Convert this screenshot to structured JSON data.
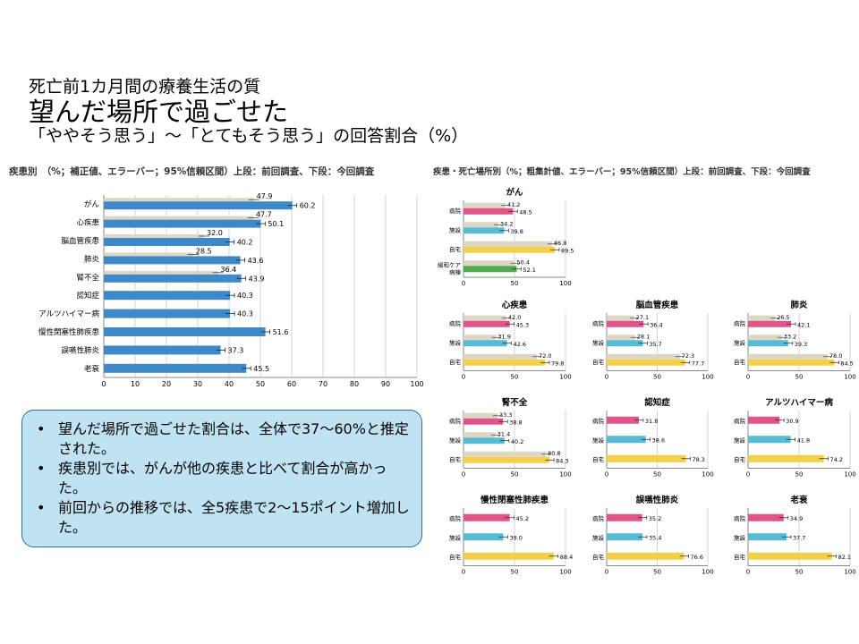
{
  "title": {
    "line1": "死亡前1カ月間の療養生活の質",
    "line2": "望んだ場所で過ごせた",
    "line3": "「ややそう思う」～「とてもそう思う」の回答割合（%）"
  },
  "left_subtitle": "疾患別　（%；補正値、エラーバー；95%信頼区間）上段：前回調査、下段：今回調査",
  "right_subtitle": "疾患・死亡場所別（%；粗集計値、エラーバー；95%信頼区間）上段：前回調査、下段：今回調査",
  "summary": {
    "bullet": "•",
    "items": [
      "望んだ場所で過ごせた割合は、全体で37～60%と推定された。",
      "疾患別では、がんが他の疾患と比べて割合が高かった。",
      "前回からの推移では、全5疾患で2～15ポイント増加した。"
    ]
  },
  "colors": {
    "previous": "#ddd6c5",
    "current_left": "#3f89c8",
    "hospital": "#e0548a",
    "facility": "#57bcd3",
    "home": "#f3d04a",
    "palliative": "#53a852",
    "grid": "#c8c8c8",
    "box_fill": "#bfe3f3",
    "box_border": "#2e6f9e"
  },
  "chart_data": [
    {
      "id": "by-disease",
      "type": "bar",
      "orientation": "horizontal",
      "xlim": [
        0,
        100
      ],
      "xticks": [
        0,
        10,
        20,
        30,
        40,
        50,
        60,
        70,
        80,
        90,
        100
      ],
      "grid": true,
      "categories": [
        "がん",
        "心疾患",
        "脳血管疾患",
        "肺炎",
        "腎不全",
        "認知症",
        "アルツハイマー病",
        "慢性閉塞性肺疾患",
        "誤嚥性肺炎",
        "老衰"
      ],
      "series": [
        {
          "values": [
            47.9,
            47.7,
            32.0,
            28.5,
            36.4,
            null,
            null,
            null,
            null,
            null
          ]
        },
        {
          "values": [
            60.2,
            50.1,
            40.2,
            43.6,
            43.9,
            40.3,
            40.3,
            51.6,
            37.3,
            45.5
          ]
        }
      ]
    },
    {
      "id": "cancer",
      "title": "がん",
      "type": "bar",
      "orientation": "horizontal",
      "xlim": [
        0,
        100
      ],
      "xticks": [
        0,
        50,
        100
      ],
      "categories": [
        "病院",
        "施設",
        "自宅",
        "緩和ケア病棟"
      ],
      "series": [
        {
          "values": [
            41.2,
            34.2,
            86.8,
            50.4
          ]
        },
        {
          "values": [
            48.5,
            39.8,
            89.5,
            52.1
          ]
        }
      ]
    },
    {
      "id": "heart",
      "title": "心疾患",
      "type": "bar",
      "orientation": "horizontal",
      "xlim": [
        0,
        100
      ],
      "xticks": [
        0,
        50,
        100
      ],
      "categories": [
        "病院",
        "施設",
        "自宅"
      ],
      "series": [
        {
          "values": [
            42.0,
            31.9,
            72.0
          ]
        },
        {
          "values": [
            45.3,
            42.6,
            79.8
          ]
        }
      ]
    },
    {
      "id": "cerebro",
      "title": "脳血管疾患",
      "type": "bar",
      "orientation": "horizontal",
      "xlim": [
        0,
        100
      ],
      "xticks": [
        0,
        50,
        100
      ],
      "categories": [
        "病院",
        "施設",
        "自宅"
      ],
      "series": [
        {
          "values": [
            27.1,
            28.1,
            72.3
          ]
        },
        {
          "values": [
            36.4,
            35.7,
            77.7
          ]
        }
      ]
    },
    {
      "id": "pneumonia",
      "title": "肺炎",
      "type": "bar",
      "orientation": "horizontal",
      "xlim": [
        0,
        100
      ],
      "xticks": [
        0,
        50,
        100
      ],
      "categories": [
        "病院",
        "施設",
        "自宅"
      ],
      "series": [
        {
          "values": [
            26.5,
            33.2,
            78.0
          ]
        },
        {
          "values": [
            42.1,
            39.3,
            84.5
          ]
        }
      ]
    },
    {
      "id": "renal",
      "title": "腎不全",
      "type": "bar",
      "orientation": "horizontal",
      "xlim": [
        0,
        100
      ],
      "xticks": [
        0,
        50,
        100
      ],
      "categories": [
        "病院",
        "施設",
        "自宅"
      ],
      "series": [
        {
          "values": [
            33.3,
            31.4,
            80.8
          ]
        },
        {
          "values": [
            38.8,
            40.2,
            84.3
          ]
        }
      ]
    },
    {
      "id": "dementia",
      "title": "認知症",
      "type": "bar",
      "orientation": "horizontal",
      "xlim": [
        0,
        100
      ],
      "xticks": [
        0,
        50,
        100
      ],
      "categories": [
        "病院",
        "施設",
        "自宅"
      ],
      "series": [
        {
          "values": [
            31.8,
            38.6,
            78.3
          ]
        }
      ]
    },
    {
      "id": "alzheimer",
      "title": "アルツハイマー病",
      "type": "bar",
      "orientation": "horizontal",
      "xlim": [
        0,
        100
      ],
      "xticks": [
        0,
        50,
        100
      ],
      "categories": [
        "病院",
        "施設",
        "自宅"
      ],
      "series": [
        {
          "values": [
            30.9,
            41.8,
            74.2
          ]
        }
      ]
    },
    {
      "id": "copd",
      "title": "慢性閉塞性肺疾患",
      "type": "bar",
      "orientation": "horizontal",
      "xlim": [
        0,
        100
      ],
      "xticks": [
        0,
        50,
        100
      ],
      "categories": [
        "病院",
        "施設",
        "自宅"
      ],
      "series": [
        {
          "values": [
            45.2,
            39.0,
            88.4
          ]
        }
      ]
    },
    {
      "id": "aspiration",
      "title": "誤嚥性肺炎",
      "type": "bar",
      "orientation": "horizontal",
      "xlim": [
        0,
        100
      ],
      "xticks": [
        0,
        50,
        100
      ],
      "categories": [
        "病院",
        "施設",
        "自宅"
      ],
      "series": [
        {
          "values": [
            35.2,
            35.4,
            76.6
          ]
        }
      ]
    },
    {
      "id": "senility",
      "title": "老衰",
      "type": "bar",
      "orientation": "horizontal",
      "xlim": [
        0,
        100
      ],
      "xticks": [
        0,
        50,
        100
      ],
      "categories": [
        "病院",
        "施設",
        "自宅"
      ],
      "series": [
        {
          "values": [
            34.9,
            37.7,
            82.1
          ]
        }
      ]
    }
  ]
}
